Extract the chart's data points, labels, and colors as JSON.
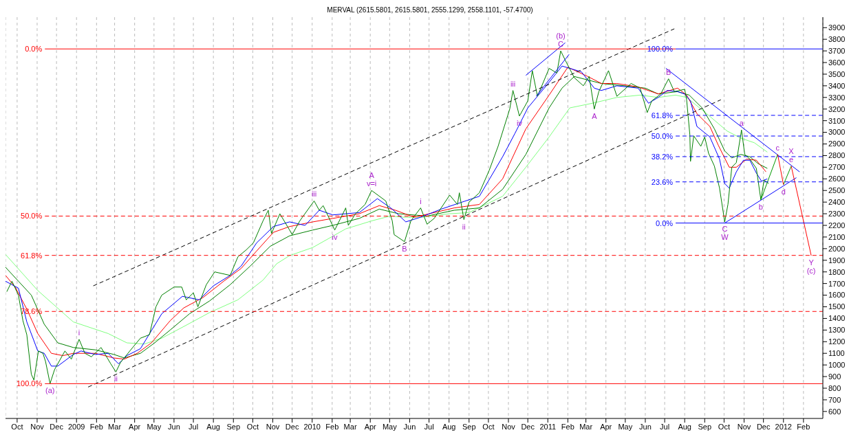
{
  "chart_data": {
    "type": "line",
    "title": "MERVAL (2615.5801, 2615.5801, 2555.1299, 2558.1101, -57.4700)",
    "xlim": [
      "2008-09-13",
      "2012-03-02"
    ],
    "xticks": [
      {
        "value": "2008-10-01",
        "label": "Oct"
      },
      {
        "value": "2008-11-01",
        "label": "Nov"
      },
      {
        "value": "2008-12-01",
        "label": "Dec"
      },
      {
        "value": "2009-01-01",
        "label": "2009"
      },
      {
        "value": "2009-02-01",
        "label": "Feb"
      },
      {
        "value": "2009-03-01",
        "label": "Mar"
      },
      {
        "value": "2009-04-01",
        "label": "Apr"
      },
      {
        "value": "2009-05-01",
        "label": "May"
      },
      {
        "value": "2009-06-01",
        "label": "Jun"
      },
      {
        "value": "2009-07-01",
        "label": "Jul"
      },
      {
        "value": "2009-08-01",
        "label": "Aug"
      },
      {
        "value": "2009-09-01",
        "label": "Sep"
      },
      {
        "value": "2009-10-01",
        "label": "Oct"
      },
      {
        "value": "2009-11-01",
        "label": "Nov"
      },
      {
        "value": "2009-12-01",
        "label": "Dec"
      },
      {
        "value": "2010-01-01",
        "label": "2010"
      },
      {
        "value": "2010-02-01",
        "label": "Feb"
      },
      {
        "value": "2010-03-01",
        "label": "Mar"
      },
      {
        "value": "2010-04-01",
        "label": "Apr"
      },
      {
        "value": "2010-05-01",
        "label": "May"
      },
      {
        "value": "2010-06-01",
        "label": "Jun"
      },
      {
        "value": "2010-07-01",
        "label": "Jul"
      },
      {
        "value": "2010-08-01",
        "label": "Aug"
      },
      {
        "value": "2010-09-01",
        "label": "Sep"
      },
      {
        "value": "2010-10-01",
        "label": "Oct"
      },
      {
        "value": "2010-11-01",
        "label": "Nov"
      },
      {
        "value": "2010-12-01",
        "label": "Dec"
      },
      {
        "value": "2011-01-01",
        "label": "2011"
      },
      {
        "value": "2011-02-01",
        "label": "Feb"
      },
      {
        "value": "2011-03-01",
        "label": "Mar"
      },
      {
        "value": "2011-04-01",
        "label": "Apr"
      },
      {
        "value": "2011-05-01",
        "label": "May"
      },
      {
        "value": "2011-06-01",
        "label": "Jun"
      },
      {
        "value": "2011-07-01",
        "label": "Jul"
      },
      {
        "value": "2011-08-01",
        "label": "Aug"
      },
      {
        "value": "2011-09-01",
        "label": "Sep"
      },
      {
        "value": "2011-10-01",
        "label": "Oct"
      },
      {
        "value": "2011-11-01",
        "label": "Nov"
      },
      {
        "value": "2011-12-01",
        "label": "Dec"
      },
      {
        "value": "2012-01-01",
        "label": "2012"
      },
      {
        "value": "2012-02-01",
        "label": "Feb"
      }
    ],
    "ylim": [
      540,
      3990
    ],
    "yticks": [
      600,
      700,
      800,
      900,
      1000,
      1100,
      1200,
      1300,
      1400,
      1500,
      1600,
      1700,
      1800,
      1900,
      2000,
      2100,
      2200,
      2300,
      2400,
      2500,
      2600,
      2700,
      2800,
      2900,
      3000,
      3100,
      3200,
      3300,
      3400,
      3500,
      3600,
      3700,
      3800,
      3900
    ],
    "grid": "x",
    "series": [
      {
        "type": "line",
        "color": "#80ff80",
        "x": [
          "2008-09-13",
          "2008-11-02",
          "2008-12-27",
          "2009-02-19",
          "2009-03-20",
          "2009-04-16",
          "2009-05-13",
          "2009-06-16",
          "2009-07-26",
          "2009-09-08",
          "2009-10-17",
          "2009-11-07",
          "2009-11-27",
          "2010-01-02",
          "2010-02-22",
          "2010-04-04",
          "2010-05-02",
          "2010-05-23",
          "2010-06-21",
          "2010-08-02",
          "2010-09-01",
          "2010-10-23",
          "2010-11-28",
          "2011-01-03",
          "2011-02-04",
          "2011-03-11",
          "2011-04-18",
          "2011-05-24",
          "2011-06-21",
          "2011-07-18",
          "2011-08-04",
          "2011-09-02",
          "2011-10-06",
          "2011-10-27",
          "2011-11-17",
          "2011-12-07"
        ],
        "values": [
          1950,
          1640,
          1370,
          1270,
          1190,
          1180,
          1230,
          1330,
          1450,
          1560,
          1730,
          1870,
          1940,
          2010,
          2170,
          2240,
          2280,
          2270,
          2270,
          2300,
          2310,
          2450,
          2700,
          2960,
          3210,
          3250,
          3300,
          3320,
          3300,
          3320,
          3300,
          3170,
          3010,
          2950,
          2910,
          2830
        ]
      },
      {
        "type": "line",
        "color": "#008000",
        "x": [
          "2008-09-13",
          "2008-10-03",
          "2008-10-23",
          "2008-11-12",
          "2008-12-03",
          "2008-12-27",
          "2009-01-30",
          "2009-02-28",
          "2009-03-16",
          "2009-04-10",
          "2009-05-02",
          "2009-05-26",
          "2009-06-25",
          "2009-07-26",
          "2009-08-27",
          "2009-09-27",
          "2009-10-28",
          "2009-11-27",
          "2010-01-02",
          "2010-02-02",
          "2010-03-15",
          "2010-04-15",
          "2010-05-15",
          "2010-06-28",
          "2010-08-09",
          "2010-09-17",
          "2010-10-23",
          "2010-11-28",
          "2011-01-03",
          "2011-01-23",
          "2011-02-11",
          "2011-03-04",
          "2011-03-25",
          "2011-04-30",
          "2011-06-01",
          "2011-06-21",
          "2011-07-21",
          "2011-08-08",
          "2011-08-28",
          "2011-09-16",
          "2011-10-02",
          "2011-10-13",
          "2011-10-27",
          "2011-11-10",
          "2011-11-23",
          "2011-12-07"
        ],
        "values": [
          1840,
          1720,
          1600,
          1350,
          1190,
          1150,
          1130,
          1090,
          1060,
          1100,
          1190,
          1300,
          1440,
          1550,
          1690,
          1850,
          2020,
          2110,
          2160,
          2200,
          2260,
          2340,
          2300,
          2280,
          2330,
          2350,
          2510,
          2810,
          3210,
          3380,
          3480,
          3450,
          3420,
          3400,
          3380,
          3330,
          3350,
          3320,
          3210,
          3030,
          2840,
          2780,
          2810,
          2790,
          2730,
          2690
        ]
      },
      {
        "type": "line",
        "color": "#ff0000",
        "x": [
          "2008-09-13",
          "2008-09-28",
          "2008-10-16",
          "2008-11-02",
          "2008-11-23",
          "2008-12-11",
          "2008-12-27",
          "2009-01-30",
          "2009-02-28",
          "2009-03-16",
          "2009-04-05",
          "2009-04-27",
          "2009-05-26",
          "2009-06-16",
          "2009-07-16",
          "2009-08-17",
          "2009-09-13",
          "2009-10-07",
          "2009-11-02",
          "2009-11-27",
          "2010-01-02",
          "2010-02-02",
          "2010-03-15",
          "2010-04-15",
          "2010-05-10",
          "2010-06-08",
          "2010-07-09",
          "2010-08-09",
          "2010-09-17",
          "2010-10-23",
          "2010-11-28",
          "2011-01-03",
          "2011-02-01",
          "2011-03-04",
          "2011-03-25",
          "2011-04-18",
          "2011-05-21",
          "2011-06-21",
          "2011-07-21",
          "2011-08-04",
          "2011-08-20",
          "2011-09-09",
          "2011-09-22",
          "2011-10-09",
          "2011-10-20",
          "2011-11-05",
          "2011-11-20",
          "2011-12-05"
        ],
        "values": [
          1770,
          1670,
          1480,
          1270,
          1100,
          1080,
          1100,
          1100,
          1060,
          1050,
          1100,
          1190,
          1380,
          1490,
          1580,
          1720,
          1830,
          1980,
          2140,
          2190,
          2230,
          2260,
          2300,
          2370,
          2330,
          2270,
          2310,
          2350,
          2380,
          2600,
          3030,
          3320,
          3560,
          3480,
          3420,
          3420,
          3390,
          3330,
          3380,
          3320,
          3160,
          3050,
          2890,
          2700,
          2700,
          2770,
          2760,
          2660
        ]
      },
      {
        "type": "line",
        "color": "#0000ff",
        "x": [
          "2008-09-13",
          "2008-10-03",
          "2008-10-16",
          "2008-11-02",
          "2008-11-12",
          "2008-11-23",
          "2008-12-03",
          "2008-12-27",
          "2009-01-08",
          "2009-01-30",
          "2009-02-19",
          "2009-03-07",
          "2009-03-20",
          "2009-04-10",
          "2009-05-13",
          "2009-06-14",
          "2009-07-10",
          "2009-08-01",
          "2009-08-27",
          "2009-09-13",
          "2009-10-07",
          "2009-11-02",
          "2009-11-27",
          "2009-12-21",
          "2010-01-12",
          "2010-02-02",
          "2010-03-15",
          "2010-04-12",
          "2010-05-05",
          "2010-05-26",
          "2010-06-18",
          "2010-07-20",
          "2010-09-17",
          "2010-10-23",
          "2010-11-11",
          "2010-12-01",
          "2011-01-03",
          "2011-01-23",
          "2011-02-22",
          "2011-03-14",
          "2011-03-25",
          "2011-04-18",
          "2011-05-21",
          "2011-06-06",
          "2011-06-21",
          "2011-07-05",
          "2011-07-21",
          "2011-08-01",
          "2011-08-10",
          "2011-08-20",
          "2011-09-09",
          "2011-09-24",
          "2011-10-02",
          "2011-10-09",
          "2011-10-20",
          "2011-10-31",
          "2011-11-10",
          "2011-11-20",
          "2011-11-28",
          "2011-12-07"
        ],
        "values": [
          1720,
          1660,
          1370,
          1120,
          1100,
          990,
          990,
          1090,
          1120,
          1090,
          1100,
          1010,
          1080,
          1140,
          1440,
          1590,
          1560,
          1680,
          1770,
          1850,
          2050,
          2190,
          2230,
          2200,
          2330,
          2290,
          2310,
          2430,
          2340,
          2230,
          2270,
          2340,
          2450,
          2790,
          2990,
          3210,
          3430,
          3570,
          3520,
          3380,
          3360,
          3400,
          3380,
          3250,
          3300,
          3360,
          3350,
          3330,
          3270,
          3050,
          2960,
          2770,
          2560,
          2520,
          2660,
          2760,
          2760,
          2650,
          2580,
          2600
        ]
      },
      {
        "type": "line",
        "color": "#008000",
        "x": [
          "2008-09-15",
          "2008-09-23",
          "2008-10-03",
          "2008-10-10",
          "2008-10-16",
          "2008-10-23",
          "2008-10-27",
          "2008-11-03",
          "2008-11-10",
          "2008-11-14",
          "2008-11-21",
          "2008-11-28",
          "2008-12-14",
          "2008-12-24",
          "2009-01-05",
          "2009-01-14",
          "2009-01-24",
          "2009-02-08",
          "2009-02-23",
          "2009-03-03",
          "2009-03-10",
          "2009-03-26",
          "2009-04-10",
          "2009-04-24",
          "2009-05-04",
          "2009-05-13",
          "2009-06-01",
          "2009-06-13",
          "2009-06-20",
          "2009-07-01",
          "2009-07-08",
          "2009-07-21",
          "2009-08-03",
          "2009-08-27",
          "2009-09-08",
          "2009-09-21",
          "2009-10-02",
          "2009-10-17",
          "2009-10-25",
          "2009-10-30",
          "2009-11-12",
          "2009-11-27",
          "2009-12-01",
          "2009-12-13",
          "2010-01-04",
          "2010-01-12",
          "2010-01-18",
          "2010-02-05",
          "2010-02-22",
          "2010-02-26",
          "2010-03-09",
          "2010-03-24",
          "2010-04-03",
          "2010-04-25",
          "2010-05-05",
          "2010-05-08",
          "2010-05-24",
          "2010-06-03",
          "2010-06-18",
          "2010-06-28",
          "2010-07-09",
          "2010-08-02",
          "2010-08-14",
          "2010-08-17",
          "2010-08-24",
          "2010-09-01",
          "2010-09-17",
          "2010-10-02",
          "2010-10-16",
          "2010-11-03",
          "2010-11-08",
          "2010-11-18",
          "2010-12-01",
          "2010-12-08",
          "2010-12-16",
          "2011-01-03",
          "2011-01-15",
          "2011-01-21",
          "2011-01-28",
          "2011-02-11",
          "2011-02-25",
          "2011-03-06",
          "2011-03-14",
          "2011-03-21",
          "2011-04-05",
          "2011-04-18",
          "2011-05-10",
          "2011-05-24",
          "2011-06-04",
          "2011-06-11",
          "2011-06-25",
          "2011-07-07",
          "2011-07-16",
          "2011-08-01",
          "2011-08-04",
          "2011-08-09",
          "2011-08-10",
          "2011-08-15",
          "2011-08-26",
          "2011-09-01",
          "2011-09-07",
          "2011-09-16",
          "2011-09-24",
          "2011-10-02",
          "2011-10-07",
          "2011-10-13",
          "2011-10-20",
          "2011-10-28",
          "2011-11-02",
          "2011-11-10",
          "2011-11-20",
          "2011-11-27",
          "2011-12-02",
          "2011-12-09"
        ],
        "values": [
          1630,
          1720,
          1600,
          1380,
          1260,
          920,
          870,
          1120,
          1100,
          1030,
          840,
          960,
          1120,
          1050,
          1220,
          1100,
          1070,
          1150,
          1010,
          940,
          1020,
          1130,
          1230,
          1260,
          1500,
          1600,
          1670,
          1670,
          1560,
          1620,
          1500,
          1690,
          1800,
          1770,
          1930,
          1990,
          2050,
          2240,
          2330,
          2130,
          2300,
          2160,
          2120,
          2240,
          2410,
          2330,
          2370,
          2160,
          2350,
          2200,
          2300,
          2380,
          2500,
          2410,
          2240,
          2120,
          2060,
          2240,
          2350,
          2210,
          2260,
          2460,
          2380,
          2480,
          2250,
          2400,
          2480,
          2670,
          2880,
          3200,
          3360,
          3140,
          3270,
          3530,
          3310,
          3550,
          3510,
          3700,
          3620,
          3470,
          3400,
          3480,
          3200,
          3350,
          3530,
          3310,
          3420,
          3380,
          3170,
          3270,
          3330,
          3460,
          3350,
          3370,
          3280,
          2980,
          2750,
          2970,
          2880,
          2960,
          2820,
          2710,
          2520,
          2230,
          2380,
          2700,
          2740,
          3020,
          2810,
          2770,
          2690,
          2420,
          2590,
          2560
        ]
      },
      {
        "type": "line",
        "color": "#000000",
        "line_style": "dashed",
        "x": [
          "2009-01-27",
          "2011-07-16"
        ],
        "values": [
          1680,
          3890
        ]
      },
      {
        "type": "line",
        "color": "#000000",
        "line_style": "dashed",
        "x": [
          "2009-01-19",
          "2011-09-26"
        ],
        "values": [
          810,
          3280
        ]
      },
      {
        "type": "line",
        "color": "#0000ff",
        "x": [
          "2010-11-28",
          "2011-01-28"
        ],
        "values": [
          3490,
          3770
        ]
      },
      {
        "type": "line",
        "color": "#0000ff",
        "x": [
          "2010-12-14",
          "2011-02-03"
        ],
        "values": [
          3310,
          3670
        ]
      },
      {
        "type": "line",
        "color": "#0000ff",
        "x": [
          "2011-07-03",
          "2012-01-26"
        ],
        "values": [
          3550,
          2660
        ]
      },
      {
        "type": "line",
        "color": "#0000ff",
        "x": [
          "2011-10-02",
          "2012-01-21"
        ],
        "values": [
          2220,
          2610
        ]
      },
      {
        "type": "line",
        "color": "#009900",
        "x": [
          "2011-11-27",
          "2011-12-23",
          "2011-12-28",
          "2012-01-01",
          "2012-01-13"
        ],
        "values": [
          2420,
          2810,
          null,
          2550,
          2710
        ]
      },
      {
        "type": "line",
        "color": "#ff0000",
        "x": [
          "2011-12-23",
          "2012-01-01",
          "2012-01-07",
          "2012-01-13",
          "2012-02-13"
        ],
        "values": [
          2810,
          2550,
          null,
          2710,
          1940
        ]
      },
      {
        "type": "line",
        "name": "0.0%",
        "color": "#ff0000",
        "line_style": "solid",
        "x": [
          "2008-11-13",
          "2011-07-18"
        ],
        "values": [
          3717,
          3717
        ]
      },
      {
        "type": "line",
        "name": "50.0%",
        "color": "#ff0000",
        "line_style": "dashed",
        "x": [
          "2008-11-13",
          "2012-03-02"
        ],
        "values": [
          2280,
          2280
        ]
      },
      {
        "type": "line",
        "name": "61.8%",
        "color": "#ff0000",
        "line_style": "dashed",
        "x": [
          "2008-11-13",
          "2012-03-02"
        ],
        "values": [
          1942,
          1942
        ]
      },
      {
        "type": "line",
        "name": "78.6%",
        "color": "#ff0000",
        "line_style": "dashed",
        "x": [
          "2008-11-13",
          "2012-03-02"
        ],
        "values": [
          1460,
          1460
        ]
      },
      {
        "type": "line",
        "name": "100.0%",
        "color": "#ff0000",
        "line_style": "solid",
        "x": [
          "2008-11-13",
          "2012-03-02"
        ],
        "values": [
          839,
          839
        ]
      },
      {
        "type": "line",
        "name": "100.0%",
        "color": "#0000ff",
        "line_style": "solid",
        "x": [
          "2011-07-18",
          "2012-03-02"
        ],
        "values": [
          3717,
          3717
        ]
      },
      {
        "type": "line",
        "name": "61.8%",
        "color": "#0000ff",
        "line_style": "dashed",
        "x": [
          "2011-07-18",
          "2012-03-02"
        ],
        "values": [
          3146,
          3146
        ]
      },
      {
        "type": "line",
        "name": "50.0%",
        "color": "#0000ff",
        "line_style": "dashed",
        "x": [
          "2011-07-18",
          "2012-03-02"
        ],
        "values": [
          2968,
          2968
        ]
      },
      {
        "type": "line",
        "name": "38.2%",
        "color": "#0000ff",
        "line_style": "dashed",
        "x": [
          "2011-07-18",
          "2012-03-02"
        ],
        "values": [
          2791,
          2791
        ]
      },
      {
        "type": "line",
        "name": "23.6%",
        "color": "#0000ff",
        "line_style": "dashed",
        "x": [
          "2011-07-18",
          "2012-03-02"
        ],
        "values": [
          2574,
          2574
        ]
      },
      {
        "type": "line",
        "name": "0.0%",
        "color": "#0000ff",
        "line_style": "solid",
        "x": [
          "2011-07-18",
          "2012-03-02"
        ],
        "values": [
          2220,
          2220
        ]
      }
    ],
    "annotations": [
      {
        "text": "(a)",
        "x": "2008-11-21",
        "y": 840
      },
      {
        "text": "i",
        "x": "2009-01-05",
        "y": 1220
      },
      {
        "text": "ii",
        "x": "2009-03-03",
        "y": 940
      },
      {
        "text": "iii",
        "x": "2010-01-04",
        "y": 2410
      },
      {
        "text": "iv",
        "x": "2010-02-05",
        "y": 2160
      },
      {
        "text": "A",
        "x": "2010-04-03",
        "y": 2500
      },
      {
        "text": "v=i",
        "x": "2010-04-03",
        "y": 2500
      },
      {
        "text": "B",
        "x": "2010-05-24",
        "y": 2060
      },
      {
        "text": "i",
        "x": "2010-06-18",
        "y": 2350
      },
      {
        "text": "ii",
        "x": "2010-08-24",
        "y": 2250
      },
      {
        "text": "iii",
        "x": "2010-11-08",
        "y": 3360
      },
      {
        "text": "iv",
        "x": "2010-11-18",
        "y": 3140
      },
      {
        "text": "(b)",
        "x": "2011-01-21",
        "y": 3700
      },
      {
        "text": "C",
        "x": "2011-01-21",
        "y": 3700
      },
      {
        "text": "A",
        "x": "2011-03-14",
        "y": 3200
      },
      {
        "text": "B",
        "x": "2011-07-07",
        "y": 3460
      },
      {
        "text": "a",
        "x": "2011-10-28",
        "y": 3020
      },
      {
        "text": "C",
        "x": "2011-10-02",
        "y": 2230
      },
      {
        "text": "W",
        "x": "2011-10-02",
        "y": 2230
      },
      {
        "text": "b",
        "x": "2011-11-27",
        "y": 2420
      },
      {
        "text": "c",
        "x": "2011-12-23",
        "y": 2810
      },
      {
        "text": "d",
        "x": "2012-01-01",
        "y": 2550
      },
      {
        "text": "X",
        "x": "2012-01-13",
        "y": 2710
      },
      {
        "text": "e",
        "x": "2012-01-13",
        "y": 2710
      },
      {
        "text": "Y",
        "x": "2012-02-13",
        "y": 1940
      },
      {
        "text": "(c)",
        "x": "2012-02-13",
        "y": 1940
      }
    ]
  }
}
